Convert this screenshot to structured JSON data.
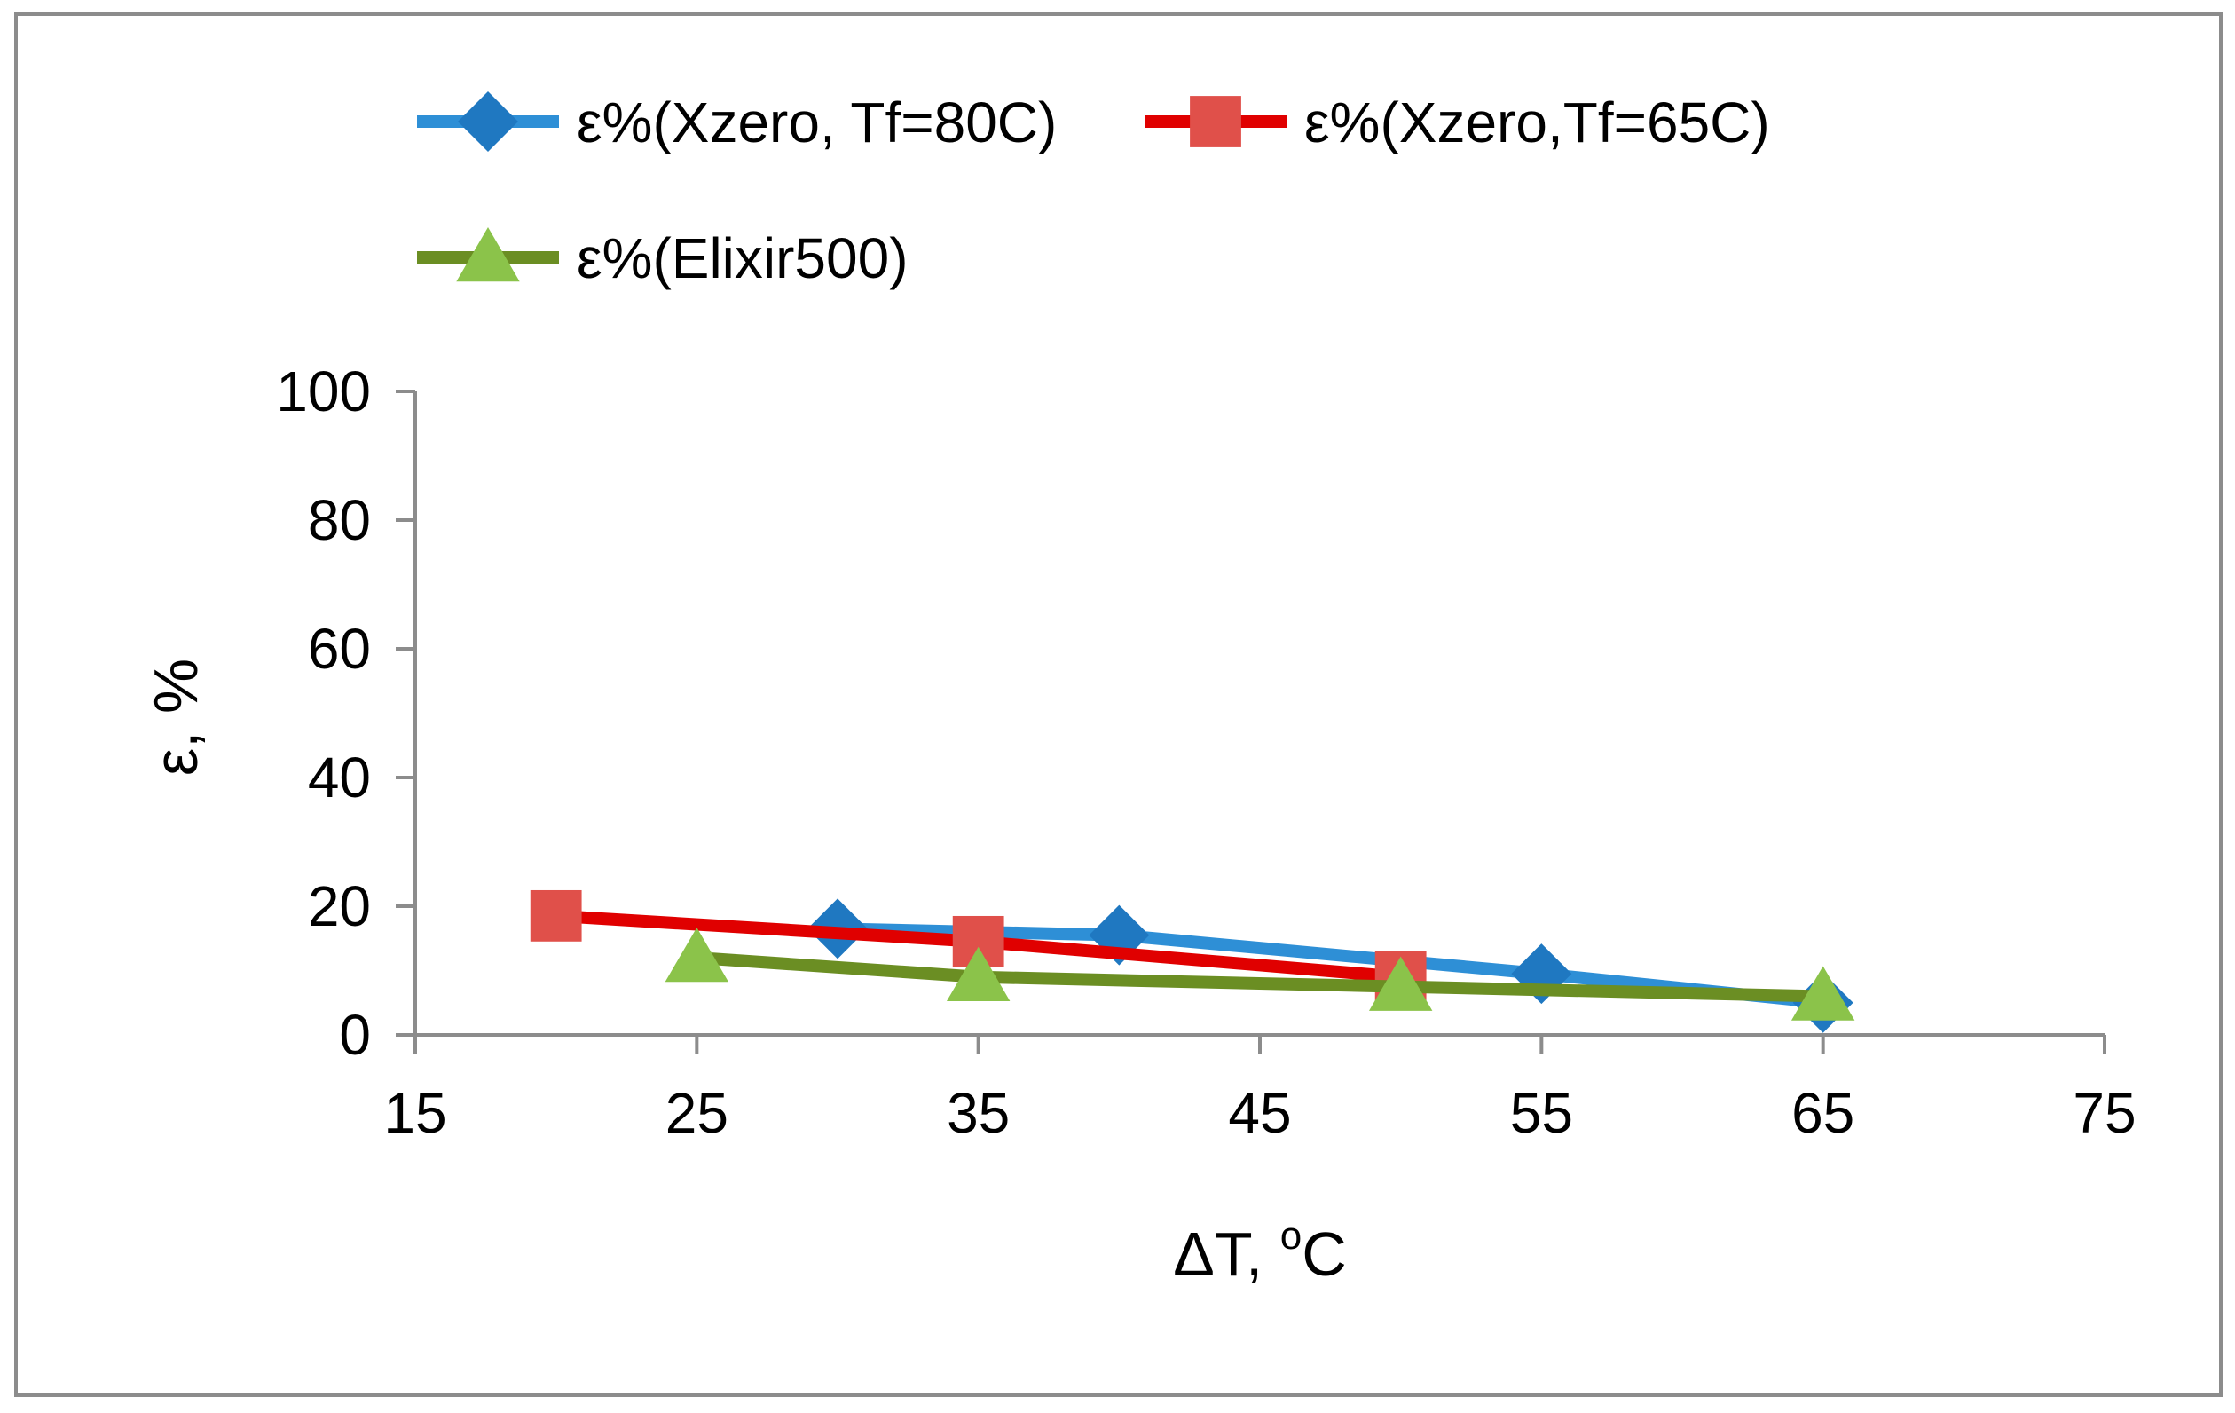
{
  "chart_data": {
    "type": "line",
    "title": "",
    "xlabel": "ΔT, ",
    "xlabel_sup": "o",
    "xlabel_unit": "C",
    "ylabel": "ε, %",
    "xlim": [
      15,
      75
    ],
    "ylim": [
      0,
      100
    ],
    "xticks": [
      15,
      25,
      35,
      45,
      55,
      65,
      75
    ],
    "yticks": [
      0,
      20,
      40,
      60,
      80,
      100
    ],
    "grid": false,
    "legend_position": "top",
    "series": [
      {
        "name": "ε%(Xzero, Tf=80C)",
        "color": "#2E8FD6",
        "marker": "diamond",
        "marker_color": "#1F78C1",
        "x": [
          30,
          40,
          55,
          65
        ],
        "y": [
          16.5,
          15.5,
          9.5,
          5
        ]
      },
      {
        "name": "ε%(Xzero,Tf=65C)",
        "color": "#E00000",
        "marker": "square",
        "marker_color": "#E0504A",
        "x": [
          20,
          35,
          50
        ],
        "y": [
          18.5,
          14.5,
          9
        ]
      },
      {
        "name": "ε%(Elixir500)",
        "color": "#6B8E23",
        "marker": "triangle",
        "marker_color": "#8BC34A",
        "x": [
          25,
          35,
          50,
          65
        ],
        "y": [
          12,
          9,
          7.5,
          6
        ]
      }
    ]
  }
}
